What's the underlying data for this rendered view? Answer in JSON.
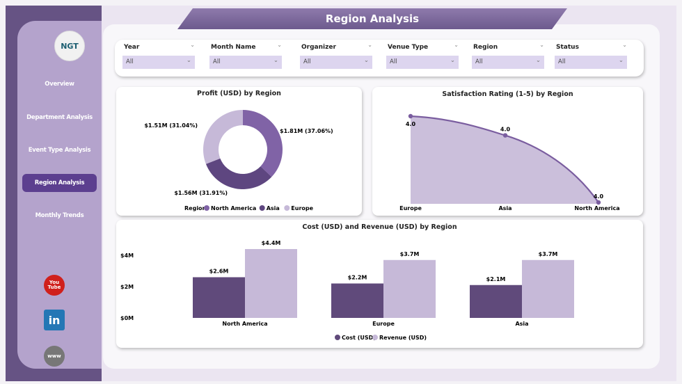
{
  "header": {
    "title": "Region Analysis",
    "logo_text": "NGT"
  },
  "sidebar": {
    "items": [
      {
        "label": "Overview"
      },
      {
        "label": "Department Analysis"
      },
      {
        "label": "Event Type Analysis"
      },
      {
        "label": "Region Analysis",
        "active": true
      },
      {
        "label": "Monthly Trends"
      }
    ],
    "social": [
      {
        "icon": "youtube-icon",
        "label": "You Tube"
      },
      {
        "icon": "linkedin-icon",
        "label": "in"
      },
      {
        "icon": "globe-icon",
        "label": "www"
      }
    ]
  },
  "filters": [
    {
      "label": "Year",
      "value": "All"
    },
    {
      "label": "Month Name",
      "value": "All"
    },
    {
      "label": "Organizer",
      "value": "All"
    },
    {
      "label": "Venue Type",
      "value": "All"
    },
    {
      "label": "Region",
      "value": "All"
    },
    {
      "label": "Status",
      "value": "All"
    }
  ],
  "colors": {
    "north_america": "#8063a6",
    "asia": "#5e4680",
    "europe": "#c6b9d8",
    "cost": "#604a7b",
    "revenue": "#c6b9d8"
  },
  "chart_data": [
    {
      "type": "pie",
      "title": "Profit (USD) by Region",
      "legend_title": "Region",
      "legend_position": "bottom",
      "categories": [
        "North America",
        "Asia",
        "Europe"
      ],
      "values": [
        1.81,
        1.56,
        1.51
      ],
      "unit": "$M",
      "labels": [
        "$1.81M (37.06%)",
        "$1.56M (31.91%)",
        "$1.51M (31.04%)"
      ]
    },
    {
      "type": "area",
      "title": "Satisfaction Rating (1-5) by Region",
      "categories": [
        "Europe",
        "Asia",
        "North America"
      ],
      "values": [
        4.04,
        4.02,
        3.95
      ],
      "labels": [
        "4.0",
        "4.0",
        "4.0"
      ]
    },
    {
      "type": "bar",
      "title": "Cost (USD) and Revenue (USD) by Region",
      "categories": [
        "North America",
        "Europe",
        "Asia"
      ],
      "series": [
        {
          "name": "Cost (USD)",
          "values": [
            2.6,
            2.2,
            2.1
          ],
          "labels": [
            "$2.6M",
            "$2.2M",
            "$2.1M"
          ]
        },
        {
          "name": "Revenue (USD)",
          "values": [
            4.4,
            3.7,
            3.7
          ],
          "labels": [
            "$4.4M",
            "$3.7M",
            "$3.7M"
          ]
        }
      ],
      "yticks": [
        "$0M",
        "$2M",
        "$4M"
      ],
      "ylim": [
        0,
        4.4
      ],
      "legend_position": "bottom"
    }
  ]
}
